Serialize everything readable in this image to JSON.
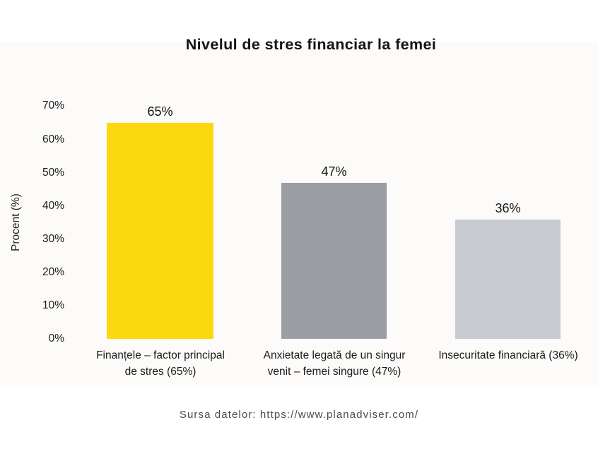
{
  "title": "Nivelul de stres financiar la femei",
  "footer": {
    "source_text": "Sursa datelor: https://www.planadviser.com/"
  },
  "chart_data": {
    "type": "bar",
    "title": "Nivelul de stres financiar la femei",
    "xlabel": "",
    "ylabel": "Procent (%)",
    "ylim": [
      0,
      70
    ],
    "grid": false,
    "legend": false,
    "yticks": [
      0,
      10,
      20,
      30,
      40,
      50,
      60,
      70
    ],
    "ytick_labels": [
      "0%",
      "10%",
      "20%",
      "30%",
      "40%",
      "50%",
      "60%",
      "70%"
    ],
    "categories": [
      "Finanțele – factor principal\nde stres (65%)",
      "Anxietate legată de un singur\nvenit – femei singure (47%)",
      "Insecuritate financiară (36%)"
    ],
    "values": [
      65,
      47,
      36
    ],
    "value_labels": [
      "65%",
      "47%",
      "36%"
    ],
    "bar_colors": [
      "#fbd90e",
      "#9b9ea3",
      "#c7cbd1"
    ]
  }
}
